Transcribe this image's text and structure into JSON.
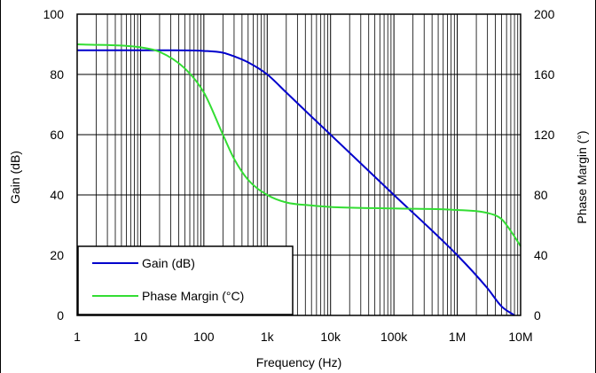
{
  "chart_data": {
    "type": "line",
    "xlabel": "Frequency (Hz)",
    "ylabel_left": "Gain (dB)",
    "ylabel_right": "Phase Margin (°)",
    "x_scale": "log",
    "xlim": [
      1,
      10000000
    ],
    "ylim_left": [
      0,
      100
    ],
    "ylim_right": [
      0,
      200
    ],
    "grid": true,
    "legend_position": "bottom-left",
    "x_ticks": [
      {
        "value": 1,
        "label": "1"
      },
      {
        "value": 10,
        "label": "10"
      },
      {
        "value": 100,
        "label": "100"
      },
      {
        "value": 1000,
        "label": "1k"
      },
      {
        "value": 10000,
        "label": "10k"
      },
      {
        "value": 100000,
        "label": "100k"
      },
      {
        "value": 1000000,
        "label": "1M"
      },
      {
        "value": 10000000,
        "label": "10M"
      }
    ],
    "y_left_ticks": [
      {
        "value": 0,
        "label": "0"
      },
      {
        "value": 20,
        "label": "20"
      },
      {
        "value": 40,
        "label": "40"
      },
      {
        "value": 60,
        "label": "60"
      },
      {
        "value": 80,
        "label": "80"
      },
      {
        "value": 100,
        "label": "100"
      }
    ],
    "y_right_ticks": [
      {
        "value": 0,
        "label": "0"
      },
      {
        "value": 40,
        "label": "40"
      },
      {
        "value": 80,
        "label": "80"
      },
      {
        "value": 120,
        "label": "120"
      },
      {
        "value": 160,
        "label": "160"
      },
      {
        "value": 200,
        "label": "200"
      }
    ],
    "series": [
      {
        "name": "Gain (dB)",
        "axis": "left",
        "color": "#0000cc",
        "x": [
          1,
          10,
          30,
          100,
          200,
          300,
          500,
          1000,
          2000,
          5000,
          10000,
          100000,
          1000000,
          3000000,
          5000000,
          8000000
        ],
        "y": [
          88,
          88,
          88,
          87.8,
          87.2,
          86,
          84,
          80,
          74,
          66,
          60,
          40,
          20,
          9,
          3,
          0
        ]
      },
      {
        "name": "Phase Margin (°C)",
        "axis": "right",
        "color": "#33dd33",
        "x": [
          1,
          10,
          20,
          50,
          100,
          200,
          300,
          500,
          1000,
          2000,
          5000,
          10000,
          100000,
          1000000,
          3000000,
          5000000,
          7000000,
          10000000
        ],
        "y": [
          180,
          178,
          175,
          164,
          148,
          120,
          104,
          90,
          80,
          75,
          73,
          72,
          71,
          70,
          68,
          64,
          56,
          46
        ]
      }
    ]
  }
}
